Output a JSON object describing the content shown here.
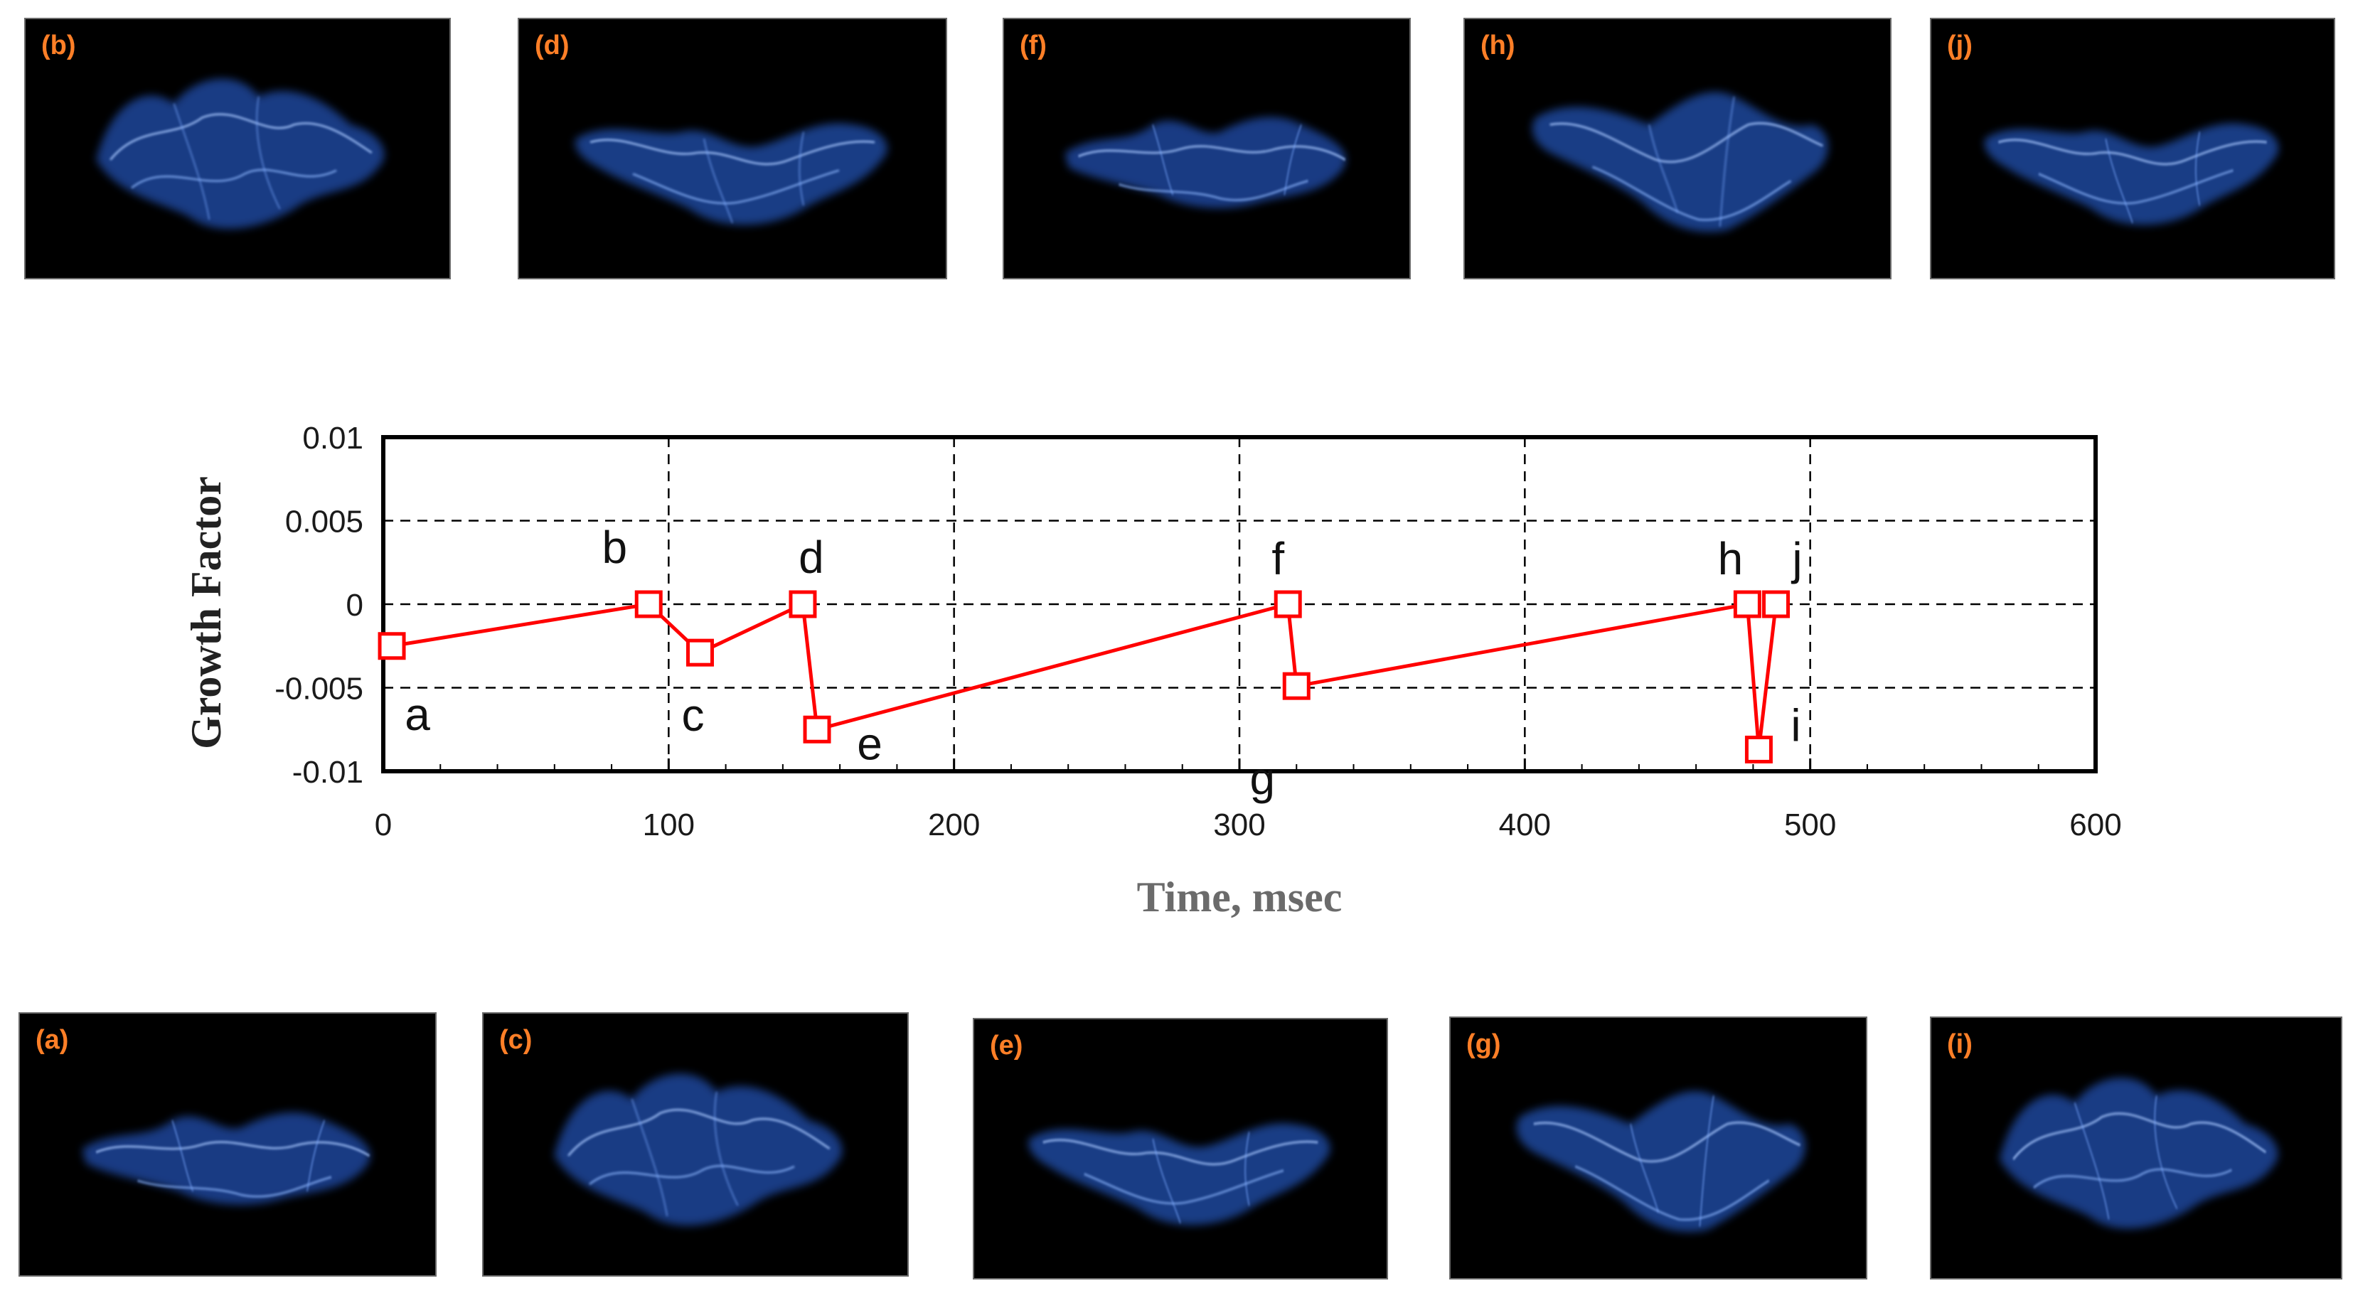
{
  "panels": [
    {
      "id": "b",
      "label": "(b)"
    },
    {
      "id": "d",
      "label": "(d)"
    },
    {
      "id": "f",
      "label": "(f)"
    },
    {
      "id": "h",
      "label": "(h)"
    },
    {
      "id": "j",
      "label": "(j)"
    },
    {
      "id": "a",
      "label": "(a)"
    },
    {
      "id": "c",
      "label": "(c)"
    },
    {
      "id": "e",
      "label": "(e)"
    },
    {
      "id": "g",
      "label": "(g)"
    },
    {
      "id": "i",
      "label": "(i)"
    }
  ],
  "colors": {
    "series": "#ff0000",
    "flame": "#3a7bff",
    "panel_label": "#ff7f27"
  },
  "chart_data": {
    "type": "line",
    "title": "",
    "xlabel": "Time, msec",
    "ylabel": "Growth  Factor",
    "xlim": [
      0,
      600
    ],
    "ylim": [
      -0.01,
      0.01
    ],
    "xticks": [
      0,
      100,
      200,
      300,
      400,
      500,
      600
    ],
    "xtick_labels": [
      "0",
      "100",
      "200",
      "300",
      "400",
      "500",
      "600"
    ],
    "yticks": [
      0.01,
      0.005,
      0,
      -0.005,
      -0.01
    ],
    "ytick_labels": [
      "0.01",
      "0.005",
      "0",
      "-0.005",
      "-0.01"
    ],
    "grid": true,
    "series": [
      {
        "name": "Growth Factor",
        "marker": "square",
        "points": [
          {
            "label": "a",
            "x": 3,
            "y": -0.0025
          },
          {
            "label": "b",
            "x": 93,
            "y": 0
          },
          {
            "label": "c",
            "x": 111,
            "y": -0.0029
          },
          {
            "label": "d",
            "x": 147,
            "y": 0
          },
          {
            "label": "e",
            "x": 152,
            "y": -0.0075
          },
          {
            "label": "f",
            "x": 317,
            "y": 0
          },
          {
            "label": "g",
            "x": 320,
            "y": -0.0049
          },
          {
            "label": "h",
            "x": 478,
            "y": 0
          },
          {
            "label": "i",
            "x": 482,
            "y": -0.0087
          },
          {
            "label": "j",
            "x": 488,
            "y": 0
          }
        ]
      }
    ]
  }
}
